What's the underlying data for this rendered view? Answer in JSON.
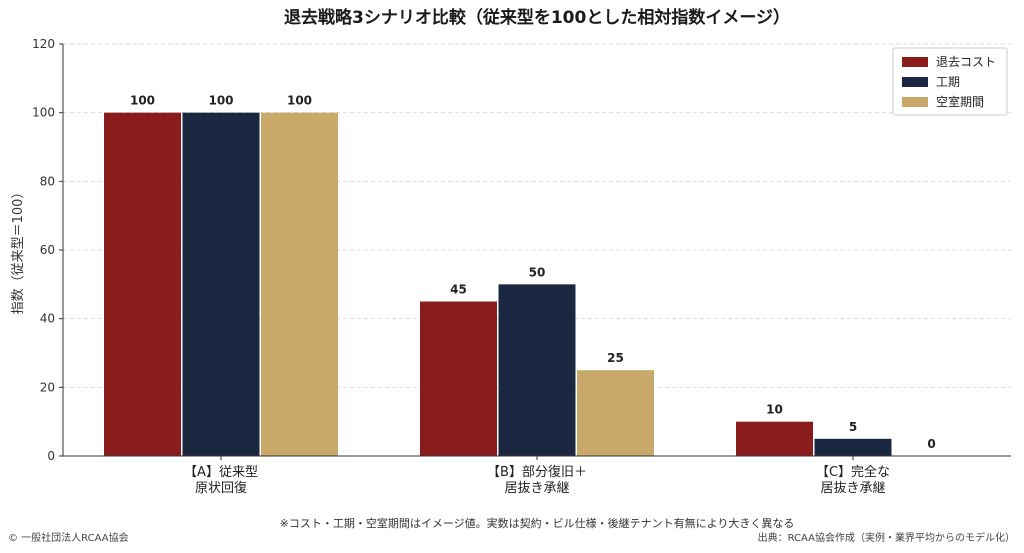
{
  "chart_data": {
    "type": "bar",
    "title": "退去戦略3シナリオ比較（従来型を100とした相対指数イメージ）",
    "ylabel": "指数（従来型＝100）",
    "xlabel": "",
    "ylim": [
      0,
      120
    ],
    "yticks": [
      0,
      20,
      40,
      60,
      80,
      100,
      120
    ],
    "grid": true,
    "legend_position": "top-right",
    "categories": [
      [
        "【A】従来型",
        "原状回復"
      ],
      [
        "【B】部分復旧＋",
        "居抜き承継"
      ],
      [
        "【C】完全な",
        "居抜き承継"
      ]
    ],
    "series": [
      {
        "name": "退去コスト",
        "color": "#8b1c1c",
        "values": [
          100,
          45,
          10
        ]
      },
      {
        "name": "工期",
        "color": "#1b2740",
        "values": [
          100,
          50,
          5
        ]
      },
      {
        "name": "空室期間",
        "color": "#c9a96a",
        "values": [
          100,
          25,
          0
        ]
      }
    ]
  },
  "note": "※コスト・工期・空室期間はイメージ値。実数は契約・ビル仕様・後継テナント有無により大きく異なる",
  "copyright": "© 一般社団法人RCAA協会",
  "source": "出典：RCAA協会作成（実例・業界平均からのモデル化）"
}
